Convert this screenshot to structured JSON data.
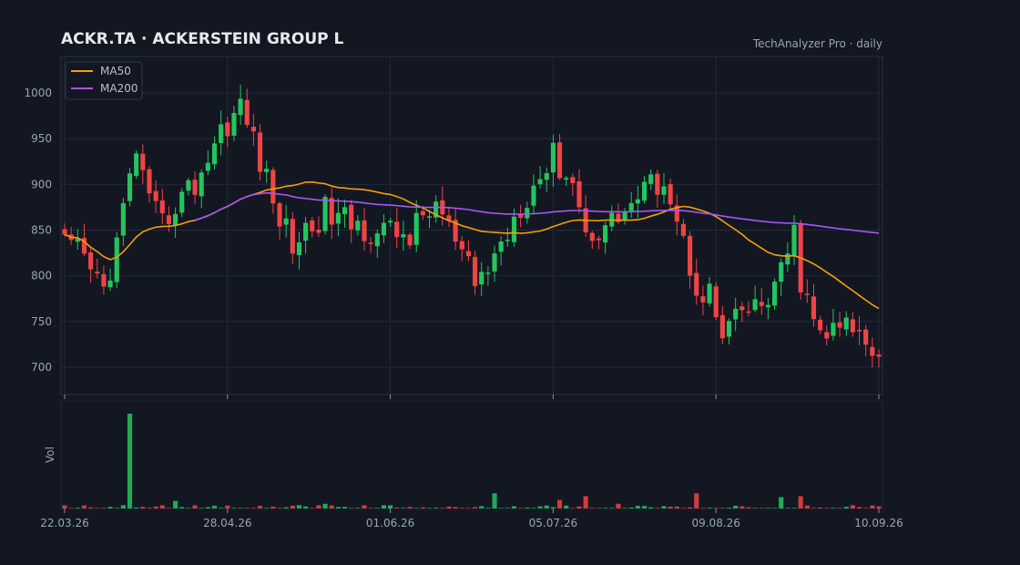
{
  "chart_data": {
    "type": "candlestick",
    "title": "ACKR.TA  ·  ACKERSTEIN GROUP L",
    "subtitle": "TechAnalyzer Pro · daily",
    "ylim": [
      670,
      1040
    ],
    "yticks": [
      700,
      750,
      800,
      850,
      900,
      950,
      1000
    ],
    "volume_ylabel": "Vol",
    "x_tick_labels": [
      "22.03.26",
      "28.04.26",
      "01.06.26",
      "05.07.26",
      "09.08.26",
      "10.09.26"
    ],
    "x_tick_index": [
      0,
      25,
      50,
      75,
      100,
      125
    ],
    "grid": true,
    "legend_position": "top-left",
    "colors": {
      "up": "#22c55e",
      "down": "#ef4444",
      "ma50": "#f59e0b",
      "ma200": "#a855f7",
      "background": "#131722",
      "grid": "#232a38"
    },
    "legend": [
      {
        "name": "MA50",
        "color": "#f59e0b"
      },
      {
        "name": "MA200",
        "color": "#a855f7"
      }
    ],
    "close_anchors": [
      [
        0,
        832
      ],
      [
        2,
        825
      ],
      [
        6,
        785
      ],
      [
        8,
        835
      ],
      [
        11,
        940
      ],
      [
        13,
        875
      ],
      [
        15,
        855
      ],
      [
        17,
        880
      ],
      [
        20,
        900
      ],
      [
        24,
        960
      ],
      [
        27,
        985
      ],
      [
        29,
        950
      ],
      [
        32,
        880
      ],
      [
        35,
        835
      ],
      [
        40,
        870
      ],
      [
        43,
        860
      ],
      [
        47,
        850
      ],
      [
        53,
        845
      ],
      [
        57,
        880
      ],
      [
        63,
        790
      ],
      [
        66,
        820
      ],
      [
        70,
        880
      ],
      [
        75,
        930
      ],
      [
        78,
        905
      ],
      [
        80,
        845
      ],
      [
        84,
        860
      ],
      [
        88,
        885
      ],
      [
        92,
        910
      ],
      [
        95,
        835
      ],
      [
        97,
        790
      ],
      [
        99,
        780
      ],
      [
        101,
        730
      ],
      [
        104,
        760
      ],
      [
        107,
        765
      ],
      [
        110,
        800
      ],
      [
        112,
        845
      ],
      [
        113,
        795
      ],
      [
        115,
        745
      ],
      [
        117,
        735
      ],
      [
        120,
        745
      ],
      [
        123,
        730
      ],
      [
        125,
        722
      ]
    ],
    "ma200_start_index": 20,
    "volume_spikes": [
      [
        10,
        100
      ],
      [
        17,
        8
      ],
      [
        40,
        5
      ],
      [
        66,
        16
      ],
      [
        76,
        9
      ],
      [
        80,
        13
      ],
      [
        85,
        5
      ],
      [
        97,
        16
      ],
      [
        110,
        12
      ],
      [
        113,
        13
      ]
    ]
  }
}
